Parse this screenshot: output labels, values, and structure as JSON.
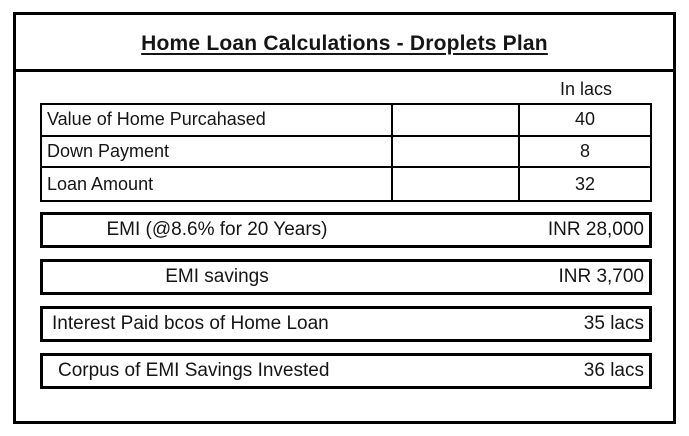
{
  "title": "Home Loan Calculations - Droplets Plan",
  "unit_label": "In lacs",
  "table": {
    "rows": [
      {
        "label": "Value of Home Purcahased",
        "middle": "",
        "value": "40"
      },
      {
        "label": "Down Payment",
        "middle": "",
        "value": "8"
      },
      {
        "label": "Loan Amount",
        "middle": "",
        "value": "32"
      }
    ]
  },
  "banners": [
    {
      "label": "EMI (@8.6% for 20 Years)",
      "value": "INR 28,000"
    },
    {
      "label": "EMI savings",
      "value": "INR 3,700"
    },
    {
      "label": "Interest Paid bcos of Home Loan",
      "value": "35 lacs"
    },
    {
      "label": "Corpus of EMI Savings Invested",
      "value": "36 lacs"
    }
  ],
  "colors": {
    "border": "#000000",
    "text": "#151515",
    "background": "#ffffff"
  }
}
